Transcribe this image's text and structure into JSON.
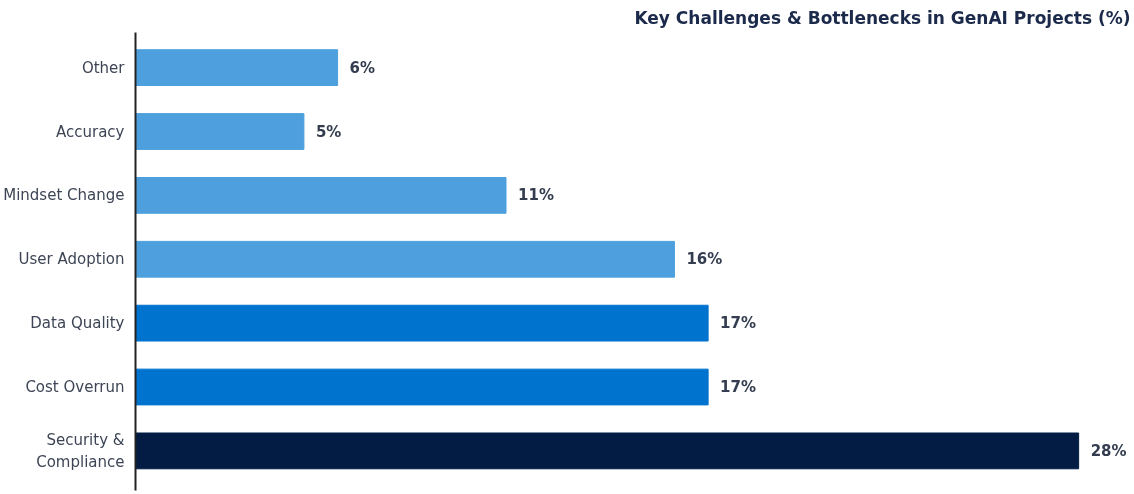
{
  "chart_data": {
    "type": "bar",
    "orientation": "horizontal",
    "title": "Key Challenges & Bottlenecks in GenAI Projects (%)",
    "categories": [
      "Other",
      "Accuracy",
      "Mindset Change",
      "User Adoption",
      "Data Quality",
      "Cost Overrun",
      "Security &\nCompliance"
    ],
    "values": [
      6,
      5,
      11,
      16,
      17,
      17,
      28
    ],
    "colors": [
      "#4da0dd",
      "#4da0dd",
      "#4da0dd",
      "#4da0dd",
      "#0073cf",
      "#0073cf",
      "#021c43"
    ],
    "value_labels": [
      "6%",
      "5%",
      "11%",
      "16%",
      "17%",
      "17%",
      "28%"
    ],
    "grid": false
  }
}
